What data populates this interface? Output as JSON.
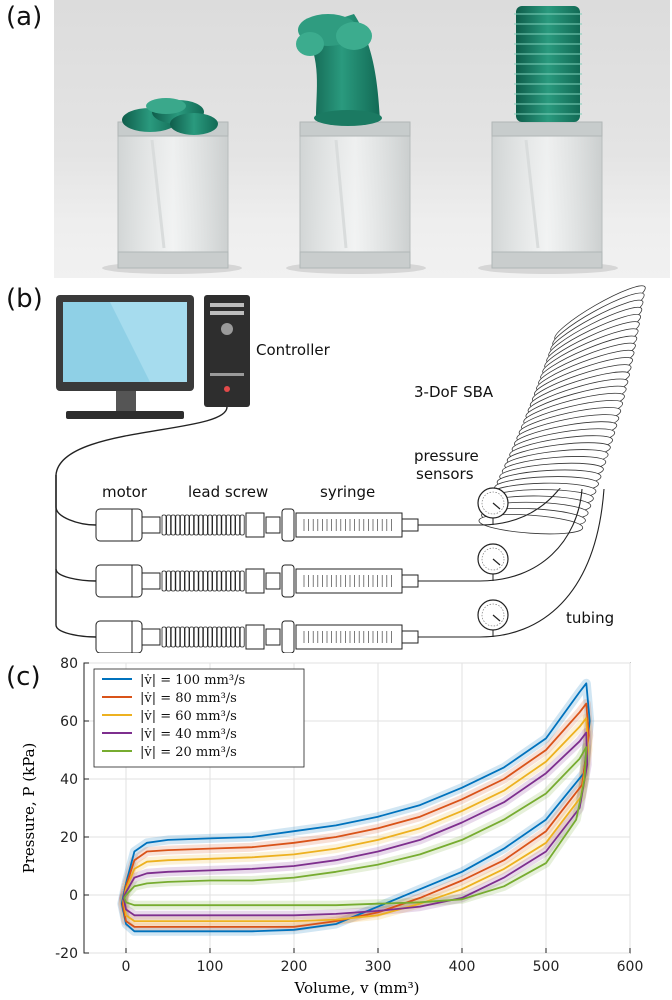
{
  "panels": {
    "a": "(a)",
    "b": "(b)",
    "c": "(c)"
  },
  "schematic_labels": {
    "controller": "Controller",
    "sba": "3-DoF SBA",
    "motor": "motor",
    "lead_screw": "lead screw",
    "syringe": "syringe",
    "pressure": "pressure",
    "sensors": "sensors",
    "tubing": "tubing"
  },
  "colors": {
    "accent_green": "#1f8a70",
    "blue": "#0072BD",
    "orange": "#D95319",
    "yellow": "#EDB120",
    "purple": "#7E2F8E",
    "green": "#77AC30"
  },
  "chart_data": {
    "type": "line",
    "xlabel": "Volume, v (mm³)",
    "ylabel": "Pressure, P (kPa)",
    "xlim": [
      -50,
      600
    ],
    "ylim": [
      -20,
      80
    ],
    "xticks": [
      0,
      100,
      200,
      300,
      400,
      500,
      600
    ],
    "yticks": [
      -20,
      0,
      20,
      40,
      60,
      80
    ],
    "grid": true,
    "legend_position": "top-left",
    "series": [
      {
        "name": "|v̇| = 100 mm³/s",
        "color": "#0072BD",
        "loading": [
          [
            0,
            4
          ],
          [
            10,
            15
          ],
          [
            25,
            18
          ],
          [
            50,
            19
          ],
          [
            100,
            19.5
          ],
          [
            150,
            20
          ],
          [
            200,
            22
          ],
          [
            250,
            24
          ],
          [
            300,
            27
          ],
          [
            350,
            31
          ],
          [
            400,
            37
          ],
          [
            450,
            44
          ],
          [
            500,
            54
          ],
          [
            540,
            70
          ],
          [
            548,
            73
          ]
        ],
        "unloading": [
          [
            548,
            73
          ],
          [
            552,
            60
          ],
          [
            545,
            42
          ],
          [
            500,
            26
          ],
          [
            450,
            16
          ],
          [
            400,
            8
          ],
          [
            350,
            2
          ],
          [
            300,
            -4
          ],
          [
            250,
            -10
          ],
          [
            200,
            -12
          ],
          [
            150,
            -12.5
          ],
          [
            100,
            -12.5
          ],
          [
            50,
            -12.5
          ],
          [
            10,
            -12.5
          ],
          [
            0,
            -10
          ],
          [
            -5,
            -3
          ],
          [
            0,
            4
          ]
        ]
      },
      {
        "name": "|v̇| = 80 mm³/s",
        "color": "#D95319",
        "loading": [
          [
            0,
            3
          ],
          [
            10,
            12
          ],
          [
            25,
            15
          ],
          [
            50,
            15.5
          ],
          [
            100,
            16
          ],
          [
            150,
            16.5
          ],
          [
            200,
            18
          ],
          [
            250,
            20
          ],
          [
            300,
            23
          ],
          [
            350,
            27
          ],
          [
            400,
            33
          ],
          [
            450,
            40
          ],
          [
            500,
            50
          ],
          [
            540,
            63
          ],
          [
            548,
            66
          ]
        ],
        "unloading": [
          [
            548,
            66
          ],
          [
            551,
            55
          ],
          [
            543,
            38
          ],
          [
            500,
            22
          ],
          [
            450,
            12
          ],
          [
            400,
            5
          ],
          [
            350,
            -1
          ],
          [
            300,
            -6
          ],
          [
            250,
            -9
          ],
          [
            200,
            -11
          ],
          [
            150,
            -11
          ],
          [
            100,
            -11
          ],
          [
            50,
            -11
          ],
          [
            10,
            -11
          ],
          [
            0,
            -9
          ],
          [
            -4,
            -3
          ],
          [
            0,
            3
          ]
        ]
      },
      {
        "name": "|v̇| = 60 mm³/s",
        "color": "#EDB120",
        "loading": [
          [
            0,
            2
          ],
          [
            10,
            9
          ],
          [
            25,
            11.5
          ],
          [
            50,
            12
          ],
          [
            100,
            12.5
          ],
          [
            150,
            13
          ],
          [
            200,
            14
          ],
          [
            250,
            16
          ],
          [
            300,
            19
          ],
          [
            350,
            23
          ],
          [
            400,
            29
          ],
          [
            450,
            36
          ],
          [
            500,
            46
          ],
          [
            540,
            58
          ],
          [
            548,
            61
          ]
        ],
        "unloading": [
          [
            548,
            61
          ],
          [
            550,
            50
          ],
          [
            542,
            34
          ],
          [
            500,
            18
          ],
          [
            450,
            9
          ],
          [
            400,
            2
          ],
          [
            350,
            -3
          ],
          [
            300,
            -7
          ],
          [
            250,
            -8.5
          ],
          [
            200,
            -9
          ],
          [
            150,
            -9
          ],
          [
            100,
            -9
          ],
          [
            50,
            -9
          ],
          [
            10,
            -9
          ],
          [
            0,
            -7
          ],
          [
            -3,
            -2
          ],
          [
            0,
            2
          ]
        ]
      },
      {
        "name": "|v̇| = 40 mm³/s",
        "color": "#7E2F8E",
        "loading": [
          [
            0,
            1
          ],
          [
            10,
            6
          ],
          [
            25,
            7.5
          ],
          [
            50,
            8
          ],
          [
            100,
            8.5
          ],
          [
            150,
            9
          ],
          [
            200,
            10
          ],
          [
            250,
            12
          ],
          [
            300,
            15
          ],
          [
            350,
            19
          ],
          [
            400,
            25
          ],
          [
            450,
            32
          ],
          [
            500,
            42
          ],
          [
            540,
            53
          ],
          [
            548,
            56
          ]
        ],
        "unloading": [
          [
            548,
            56
          ],
          [
            549,
            45
          ],
          [
            540,
            30
          ],
          [
            500,
            15
          ],
          [
            450,
            6
          ],
          [
            400,
            -1
          ],
          [
            350,
            -4
          ],
          [
            300,
            -5.5
          ],
          [
            250,
            -6.5
          ],
          [
            200,
            -7
          ],
          [
            150,
            -7
          ],
          [
            100,
            -7
          ],
          [
            50,
            -7
          ],
          [
            10,
            -7
          ],
          [
            0,
            -5
          ],
          [
            -3,
            -1
          ],
          [
            0,
            1
          ]
        ]
      },
      {
        "name": "|v̇| = 20 mm³/s",
        "color": "#77AC30",
        "loading": [
          [
            0,
            0
          ],
          [
            10,
            3
          ],
          [
            25,
            4
          ],
          [
            50,
            4.5
          ],
          [
            100,
            5
          ],
          [
            150,
            5
          ],
          [
            200,
            6
          ],
          [
            250,
            8
          ],
          [
            300,
            10.5
          ],
          [
            350,
            14
          ],
          [
            400,
            19
          ],
          [
            450,
            26
          ],
          [
            500,
            35
          ],
          [
            540,
            47
          ],
          [
            548,
            51
          ]
        ],
        "unloading": [
          [
            548,
            51
          ],
          [
            546,
            40
          ],
          [
            536,
            26
          ],
          [
            500,
            11
          ],
          [
            450,
            3
          ],
          [
            400,
            -1.5
          ],
          [
            350,
            -2.5
          ],
          [
            300,
            -3
          ],
          [
            250,
            -3.5
          ],
          [
            200,
            -3.5
          ],
          [
            150,
            -3.5
          ],
          [
            100,
            -3.5
          ],
          [
            50,
            -3.5
          ],
          [
            10,
            -3.5
          ],
          [
            0,
            -2.5
          ],
          [
            -2,
            -1
          ],
          [
            0,
            0
          ]
        ]
      }
    ]
  }
}
